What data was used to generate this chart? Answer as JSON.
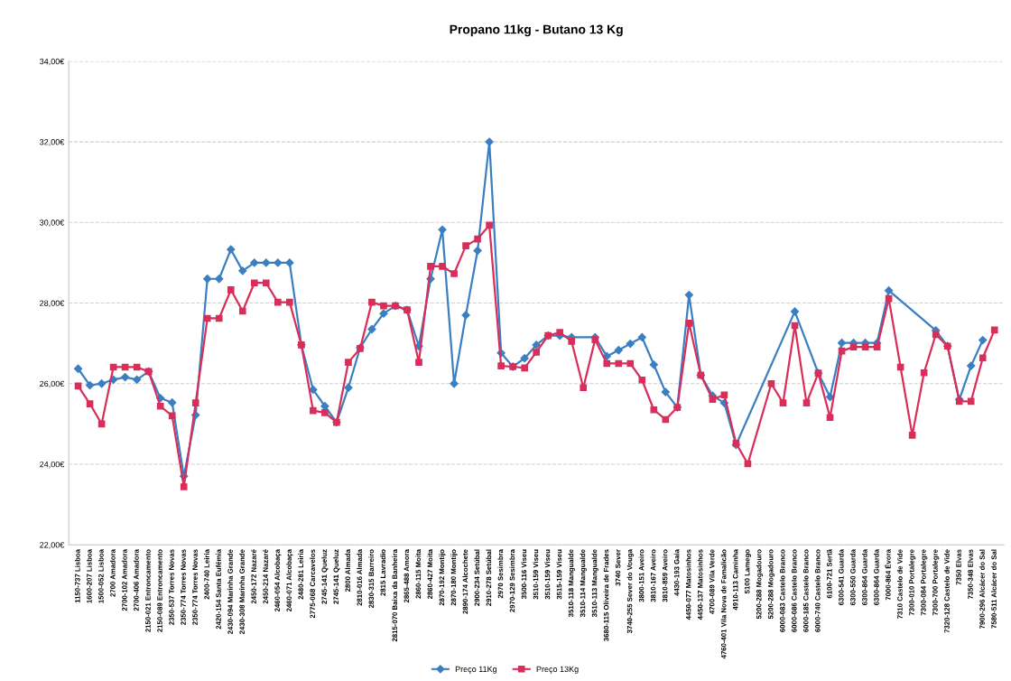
{
  "chart_data": {
    "type": "line",
    "title": "Propano 11kg - Butano 13 Kg",
    "categories": [
      "1150-737 Lisboa",
      "1600-207 Lisboa",
      "1500-052 Lisboa",
      "2700 Amadora",
      "2700-102 Amadora",
      "2700-406 Amadora",
      "2150-021 Entroncamento",
      "2150-089 Entroncamento",
      "2350-537 Torres Novas",
      "2350-774 Torres Novas",
      "2350-774 Torres Novas",
      "2400-740 Leiria",
      "2420-154 Santa Eufémia",
      "2430-094 Marinha Grande",
      "2430-308 Marinha Grande",
      "2450-172 Nazaré",
      "2450-214 Nazaré",
      "2460-054 Alcobaça",
      "2460-071 Alcobaça",
      "2480-281 Leiria",
      "2775-068 Carcavelos",
      "2745-141 Queluz",
      "2745-141 Queluz",
      "2800 Almada",
      "2810-016 Almada",
      "2830-315 Barreiro",
      "2815 Lavradio",
      "2815-070 Baixa da Banheira",
      "2865-488 Amora",
      "2860-115 Moita",
      "2860-427 Moita",
      "2870-192 Montijo",
      "2870-180 Montijo",
      "2890-174 Alcochete",
      "2900-234 Setúbal",
      "2910-278 Setúbal",
      "2970 Sesimbra",
      "2970-129 Sesimbra",
      "3500-116 Viseu",
      "3510-159 Viseu",
      "3510-159 Viseu",
      "3515-159 Viseu",
      "3510-118 Mangualde",
      "3510-114 Mangualde",
      "3510-113 Mangualde",
      "3680-115 Oliveira de Frades",
      "3740 Sever",
      "3740-255 Sever do Vouga",
      "3800-151 Aveiro",
      "3810-167 Aveiro",
      "3810-859 Aveiro",
      "4430-193 Gaia",
      "4450-077 Matosinhos",
      "4450-137 Matosinhos",
      "4700-089 Vila Verde",
      "4760-401 Vila Nova de Famalicão",
      "4910-113 Caminha",
      "5100 Lamego",
      "5200-288 Mogadouro",
      "5200-288 Mogadouro",
      "6000-083 Castelo Branco",
      "6000-086 Castelo Branco",
      "6000-185 Castelo Branco",
      "6000-740 Castelo Branco",
      "6100-721 Sertã",
      "6300-541 Guarda",
      "6300-550 Guarda",
      "6300-864 Guarda",
      "6300-864 Guarda",
      "7000-864 Évora",
      "7310 Castelo de Vide",
      "7300-010 Portalegre",
      "7300-084 Portalegre",
      "7300-700 Portalegre",
      "7320-128 Castelo de Vide",
      "7350 Elvas",
      "7350-348 Elvas",
      "7900-296 Alcácer do Sal",
      "7580-511 Alcácer do Sal"
    ],
    "series": [
      {
        "name": "Preço 11Kg",
        "color": "#3a7fc1",
        "marker": "diamond",
        "values": [
          26.37,
          25.96,
          26.0,
          26.1,
          26.16,
          26.1,
          26.3,
          25.64,
          25.53,
          23.7,
          25.22,
          28.6,
          28.6,
          29.33,
          28.8,
          29.0,
          29.0,
          29.0,
          29.0,
          26.96,
          25.85,
          25.44,
          25.04,
          25.9,
          26.89,
          27.35,
          27.74,
          27.93,
          27.83,
          26.93,
          28.6,
          29.82,
          26.0,
          27.7,
          29.3,
          32.0,
          26.76,
          26.42,
          26.63,
          26.96,
          27.19,
          27.19,
          27.15,
          null,
          27.15,
          26.68,
          26.83,
          26.99,
          27.15,
          26.47,
          25.79,
          25.41,
          28.2,
          26.21,
          25.7,
          25.52,
          24.48,
          null,
          null,
          null,
          null,
          27.79,
          null,
          26.26,
          25.67,
          27.01,
          27.01,
          27.01,
          27.01,
          28.31,
          null,
          null,
          null,
          27.32,
          26.93,
          25.6,
          26.44,
          27.08,
          null
        ]
      },
      {
        "name": "Preço 13Kg",
        "color": "#d92d5a",
        "marker": "square",
        "values": [
          25.94,
          25.5,
          25.0,
          26.41,
          26.41,
          26.41,
          26.3,
          25.44,
          25.2,
          23.44,
          25.52,
          27.62,
          27.62,
          28.33,
          27.8,
          28.5,
          28.5,
          28.02,
          28.02,
          26.96,
          25.33,
          25.28,
          25.04,
          26.53,
          26.87,
          28.02,
          27.93,
          27.93,
          27.83,
          26.53,
          28.91,
          28.91,
          28.73,
          29.42,
          29.59,
          29.93,
          26.44,
          26.42,
          26.39,
          26.78,
          27.19,
          27.27,
          27.05,
          25.9,
          27.09,
          26.5,
          26.5,
          26.5,
          26.09,
          25.35,
          25.11,
          25.41,
          27.5,
          26.21,
          25.61,
          25.72,
          24.52,
          24.01,
          null,
          26.0,
          25.52,
          27.44,
          25.52,
          26.26,
          25.16,
          26.81,
          26.91,
          26.91,
          26.91,
          28.11,
          26.41,
          24.72,
          26.27,
          27.22,
          26.93,
          25.56,
          25.56,
          26.64,
          27.33
        ]
      }
    ],
    "ylim": [
      22,
      34
    ],
    "yticks": [
      {
        "value": 22,
        "label": "22,00€"
      },
      {
        "value": 24,
        "label": "24,00€"
      },
      {
        "value": 26,
        "label": "26,00€"
      },
      {
        "value": 28,
        "label": "28,00€"
      },
      {
        "value": 30,
        "label": "30,00€"
      },
      {
        "value": 32,
        "label": "32,00€"
      },
      {
        "value": 34,
        "label": "34,00€"
      }
    ],
    "grid": "y",
    "legend": "bottom",
    "line_style": "solid"
  }
}
